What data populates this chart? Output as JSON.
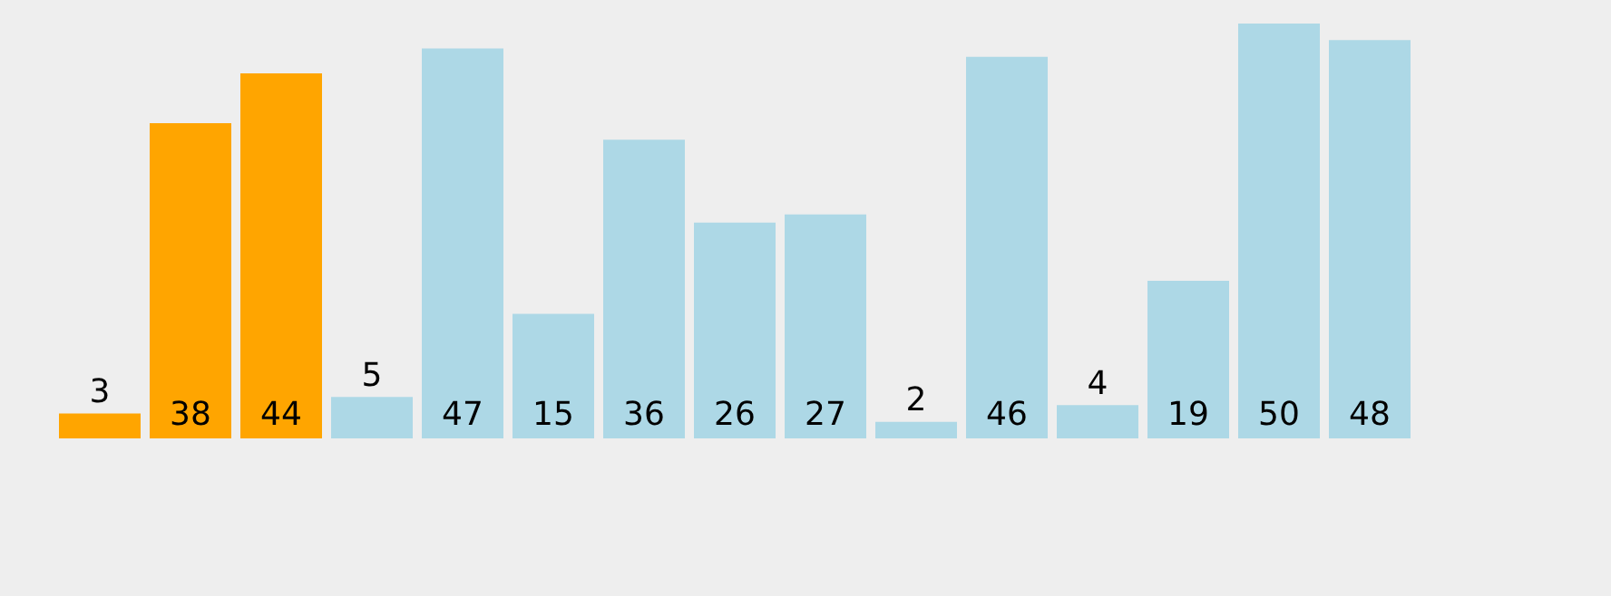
{
  "chart_data": {
    "type": "bar",
    "categories": [
      null,
      null,
      null,
      null,
      null,
      null,
      null,
      null,
      null,
      null,
      null,
      null,
      null,
      null,
      null
    ],
    "values": [
      3,
      38,
      44,
      5,
      47,
      15,
      36,
      26,
      27,
      2,
      46,
      4,
      19,
      50,
      48
    ],
    "colors": [
      "#ffa500",
      "#ffa500",
      "#ffa500",
      "#add8e6",
      "#add8e6",
      "#add8e6",
      "#add8e6",
      "#add8e6",
      "#add8e6",
      "#add8e6",
      "#add8e6",
      "#add8e6",
      "#add8e6",
      "#add8e6",
      "#add8e6"
    ],
    "ylim": [
      0,
      50
    ],
    "tick_labels": false,
    "legend": false,
    "data_labels": true
  }
}
